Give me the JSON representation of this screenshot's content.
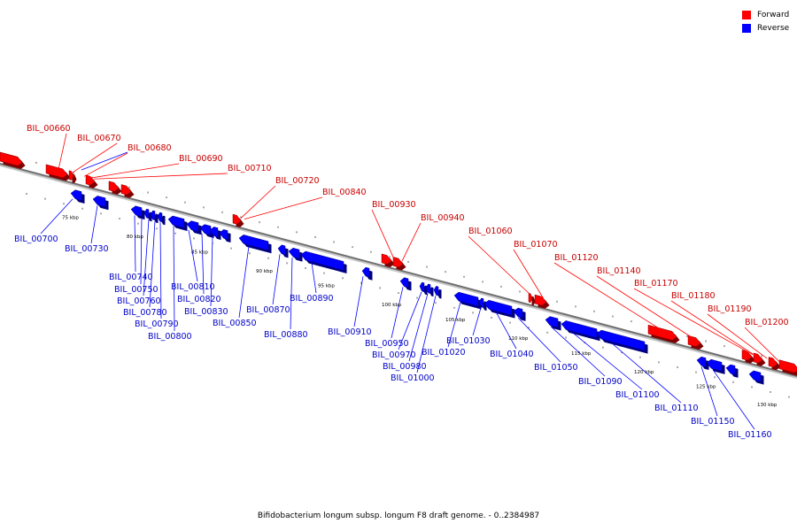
{
  "legend": {
    "forward_label": "Forward",
    "reverse_label": "Reverse",
    "forward_color": "#ff0000",
    "reverse_color": "#0000ff"
  },
  "caption": "Bifidobacterium longum subsp. longum F8 draft genome. - 0..2384987",
  "kbp_ticks": [
    "75 kbp",
    "80 kbp",
    "85 kbp",
    "90 kbp",
    "95 kbp",
    "100 kbp",
    "105 kbp",
    "110 kbp",
    "115 kbp",
    "120 kbp",
    "125 kbp",
    "130 kbp"
  ],
  "forward_genes": [
    "BIL_00660",
    "BIL_00670",
    "BIL_00680",
    "BIL_00690",
    "BIL_00710",
    "BIL_00720",
    "BIL_00840",
    "BIL_00930",
    "BIL_00940",
    "BIL_01060",
    "BIL_01070",
    "BIL_01120",
    "BIL_01140",
    "BIL_01170",
    "BIL_01180",
    "BIL_01190",
    "BIL_01200"
  ],
  "reverse_genes": [
    "BIL_00700",
    "BIL_00730",
    "BIL_00740",
    "BIL_00750",
    "BIL_00760",
    "BIL_00780",
    "BIL_00790",
    "BIL_00800",
    "BIL_00810",
    "BIL_00820",
    "BIL_00830",
    "BIL_00850",
    "BIL_00870",
    "BIL_00880",
    "BIL_00890",
    "BIL_00910",
    "BIL_00950",
    "BIL_00970",
    "BIL_00980",
    "BIL_01000",
    "BIL_01020",
    "BIL_01030",
    "BIL_01040",
    "BIL_01050",
    "BIL_01090",
    "BIL_01100",
    "BIL_01110",
    "BIL_01150",
    "BIL_01160"
  ]
}
